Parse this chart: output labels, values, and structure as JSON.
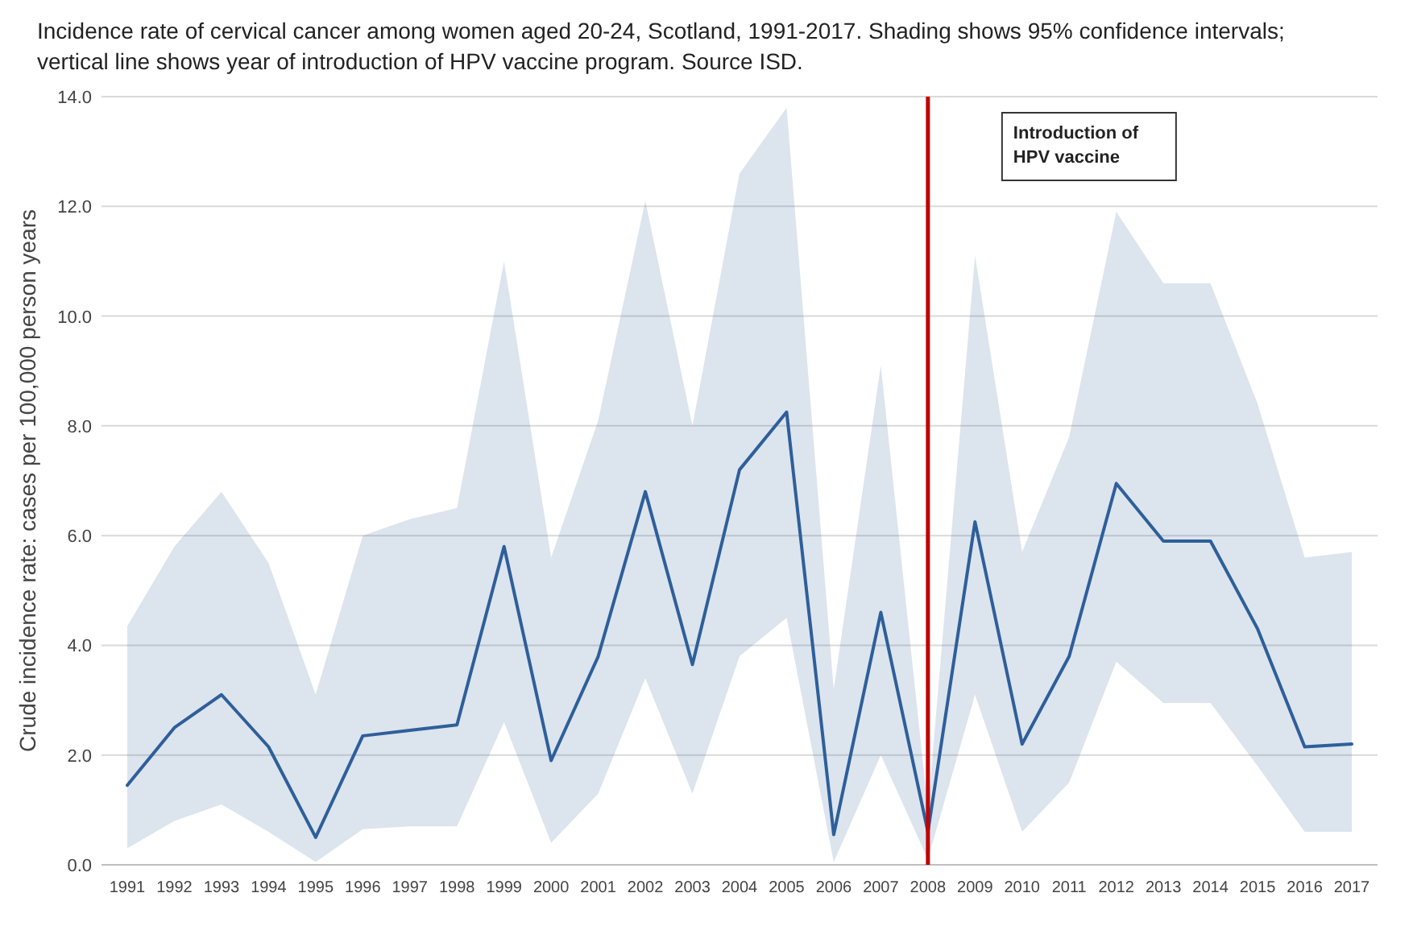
{
  "chart_data": {
    "type": "line",
    "title": "Incidence rate of cervical cancer among women aged 20-24, Scotland, 1991-2017. Shading shows 95% confidence intervals; vertical line shows year of introduction of HPV vaccine program. Source ISD.",
    "ylabel": "Crude incidence rate: cases per 100,000 person years",
    "categories": [
      "1991",
      "1992",
      "1993",
      "1994",
      "1995",
      "1996",
      "1997",
      "1998",
      "1999",
      "2000",
      "2001",
      "2002",
      "2003",
      "2004",
      "2005",
      "2006",
      "2007",
      "2008",
      "2009",
      "2010",
      "2011",
      "2012",
      "2013",
      "2014",
      "2015",
      "2016",
      "2017"
    ],
    "series": [
      {
        "color": "#2e5f9a",
        "values": [
          1.45,
          2.5,
          3.1,
          2.15,
          0.5,
          2.35,
          2.45,
          2.55,
          5.8,
          1.9,
          3.8,
          6.8,
          3.65,
          7.2,
          8.25,
          0.55,
          4.6,
          0.6,
          6.25,
          2.2,
          3.8,
          6.95,
          5.9,
          5.9,
          4.3,
          2.15,
          2.2
        ],
        "lower": [
          0.3,
          0.8,
          1.1,
          0.6,
          0.05,
          0.65,
          0.7,
          0.7,
          2.6,
          0.4,
          1.3,
          3.4,
          1.3,
          3.8,
          4.5,
          0.05,
          2.0,
          0.1,
          3.1,
          0.6,
          1.5,
          3.7,
          2.95,
          2.95,
          1.8,
          0.6,
          0.6
        ],
        "upper": [
          4.35,
          5.8,
          6.8,
          5.5,
          3.1,
          6.0,
          6.3,
          6.5,
          11.0,
          5.6,
          8.1,
          12.1,
          8.0,
          12.6,
          13.8,
          3.2,
          9.1,
          1.0,
          11.1,
          5.7,
          7.8,
          11.9,
          10.6,
          10.6,
          8.4,
          5.6,
          5.7
        ]
      }
    ],
    "ylim": [
      0,
      14
    ],
    "yticks": [
      {
        "value": 0,
        "label": "0.0"
      },
      {
        "value": 2,
        "label": "2.0"
      },
      {
        "value": 4,
        "label": "4.0"
      },
      {
        "value": 6,
        "label": "6.0"
      },
      {
        "value": 8,
        "label": "8.0"
      },
      {
        "value": 10,
        "label": "10.0"
      },
      {
        "value": 12,
        "label": "12.0"
      },
      {
        "value": 14,
        "label": "14.0"
      }
    ],
    "grid": "y",
    "ref_lines": [
      {
        "axis": "x",
        "value": "2008",
        "color": "#c00000"
      }
    ],
    "annotations": [
      "Introduction of HPV vaccine"
    ],
    "marker": "none",
    "line_style": "solid"
  }
}
